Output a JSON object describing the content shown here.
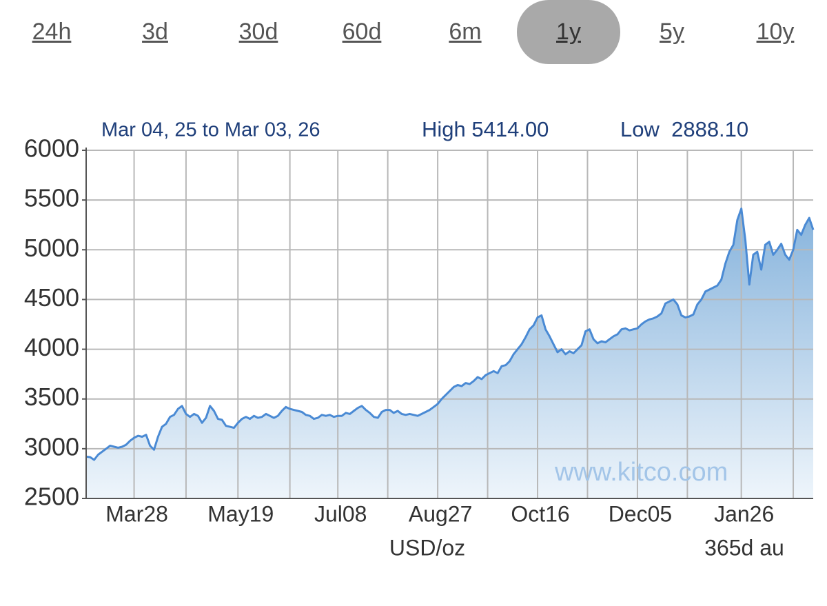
{
  "tabs": {
    "items": [
      "24h",
      "3d",
      "30d",
      "60d",
      "6m",
      "1y",
      "5y",
      "10y"
    ],
    "selected_index": 5
  },
  "chart_data": {
    "type": "area",
    "annotations": [
      "Mar 04, 25 to Mar 03, 26",
      "High 5414.00",
      "Low  2888.10",
      "www.kitco.com",
      "USD/oz",
      "365d au"
    ],
    "categories": [
      null,
      null,
      null,
      null,
      null,
      null,
      null,
      null,
      null,
      null,
      null,
      null,
      "Mar28",
      null,
      null,
      null,
      null,
      null,
      null,
      null,
      null,
      null,
      null,
      null,
      null,
      null,
      null,
      null,
      null,
      null,
      null,
      null,
      null,
      null,
      null,
      null,
      null,
      null,
      "May19",
      null,
      null,
      null,
      null,
      null,
      null,
      null,
      null,
      null,
      null,
      null,
      null,
      null,
      null,
      null,
      null,
      null,
      null,
      null,
      null,
      null,
      null,
      null,
      null,
      "Jul08",
      null,
      null,
      null,
      null,
      null,
      null,
      null,
      null,
      null,
      null,
      null,
      null,
      null,
      null,
      null,
      null,
      null,
      null,
      null,
      null,
      null,
      null,
      null,
      null,
      "Aug27",
      null,
      null,
      null,
      null,
      null,
      null,
      null,
      null,
      null,
      null,
      null,
      null,
      null,
      null,
      null,
      null,
      null,
      null,
      null,
      null,
      null,
      null,
      null,
      null,
      "Oct16",
      null,
      null,
      null,
      null,
      null,
      null,
      null,
      null,
      null,
      null,
      null,
      null,
      null,
      null,
      null,
      null,
      null,
      null,
      null,
      null,
      null,
      null,
      null,
      null,
      "Dec05",
      null,
      null,
      null,
      null,
      null,
      null,
      null,
      null,
      null,
      null,
      null,
      null,
      null,
      null,
      null,
      null,
      null,
      null,
      null,
      null,
      null,
      null,
      null,
      null,
      null,
      "Jan26",
      null,
      null,
      null,
      null,
      null,
      null,
      null,
      null,
      null,
      null,
      null,
      null,
      null,
      null,
      null,
      null,
      null,
      null
    ],
    "values": [
      2920,
      2915,
      2888.1,
      2940,
      2970,
      3000,
      3030,
      3020,
      3010,
      3020,
      3040,
      3080,
      3110,
      3130,
      3120,
      3140,
      3030,
      2990,
      3120,
      3220,
      3250,
      3320,
      3340,
      3400,
      3430,
      3350,
      3320,
      3350,
      3330,
      3260,
      3310,
      3430,
      3380,
      3300,
      3290,
      3230,
      3220,
      3210,
      3260,
      3300,
      3320,
      3300,
      3330,
      3310,
      3320,
      3350,
      3330,
      3310,
      3330,
      3380,
      3420,
      3400,
      3390,
      3380,
      3370,
      3340,
      3330,
      3300,
      3310,
      3340,
      3330,
      3340,
      3320,
      3330,
      3330,
      3360,
      3350,
      3380,
      3410,
      3430,
      3390,
      3360,
      3320,
      3310,
      3370,
      3390,
      3390,
      3360,
      3380,
      3350,
      3340,
      3350,
      3340,
      3330,
      3350,
      3370,
      3390,
      3420,
      3450,
      3500,
      3540,
      3580,
      3620,
      3640,
      3630,
      3660,
      3650,
      3680,
      3720,
      3700,
      3740,
      3760,
      3780,
      3760,
      3830,
      3840,
      3880,
      3950,
      4000,
      4050,
      4120,
      4200,
      4240,
      4320,
      4340,
      4200,
      4130,
      4050,
      3970,
      4000,
      3950,
      3980,
      3960,
      4000,
      4040,
      4180,
      4200,
      4100,
      4060,
      4080,
      4070,
      4100,
      4130,
      4150,
      4200,
      4210,
      4190,
      4200,
      4210,
      4250,
      4280,
      4300,
      4310,
      4330,
      4360,
      4460,
      4480,
      4500,
      4450,
      4340,
      4320,
      4330,
      4350,
      4450,
      4500,
      4580,
      4600,
      4620,
      4640,
      4700,
      4860,
      4980,
      5050,
      5300,
      5414,
      5100,
      4650,
      4950,
      4980,
      4800,
      5050,
      5080,
      4950,
      5000,
      5060,
      4950,
      4900,
      5000,
      5200,
      5150,
      5250,
      5320,
      5200
    ],
    "color": "#4a8ad4",
    "ylim": [
      2500,
      6000
    ],
    "yticks": [
      2500,
      3000,
      3500,
      4000,
      4500,
      5000,
      5500,
      6000
    ],
    "grid": true
  }
}
